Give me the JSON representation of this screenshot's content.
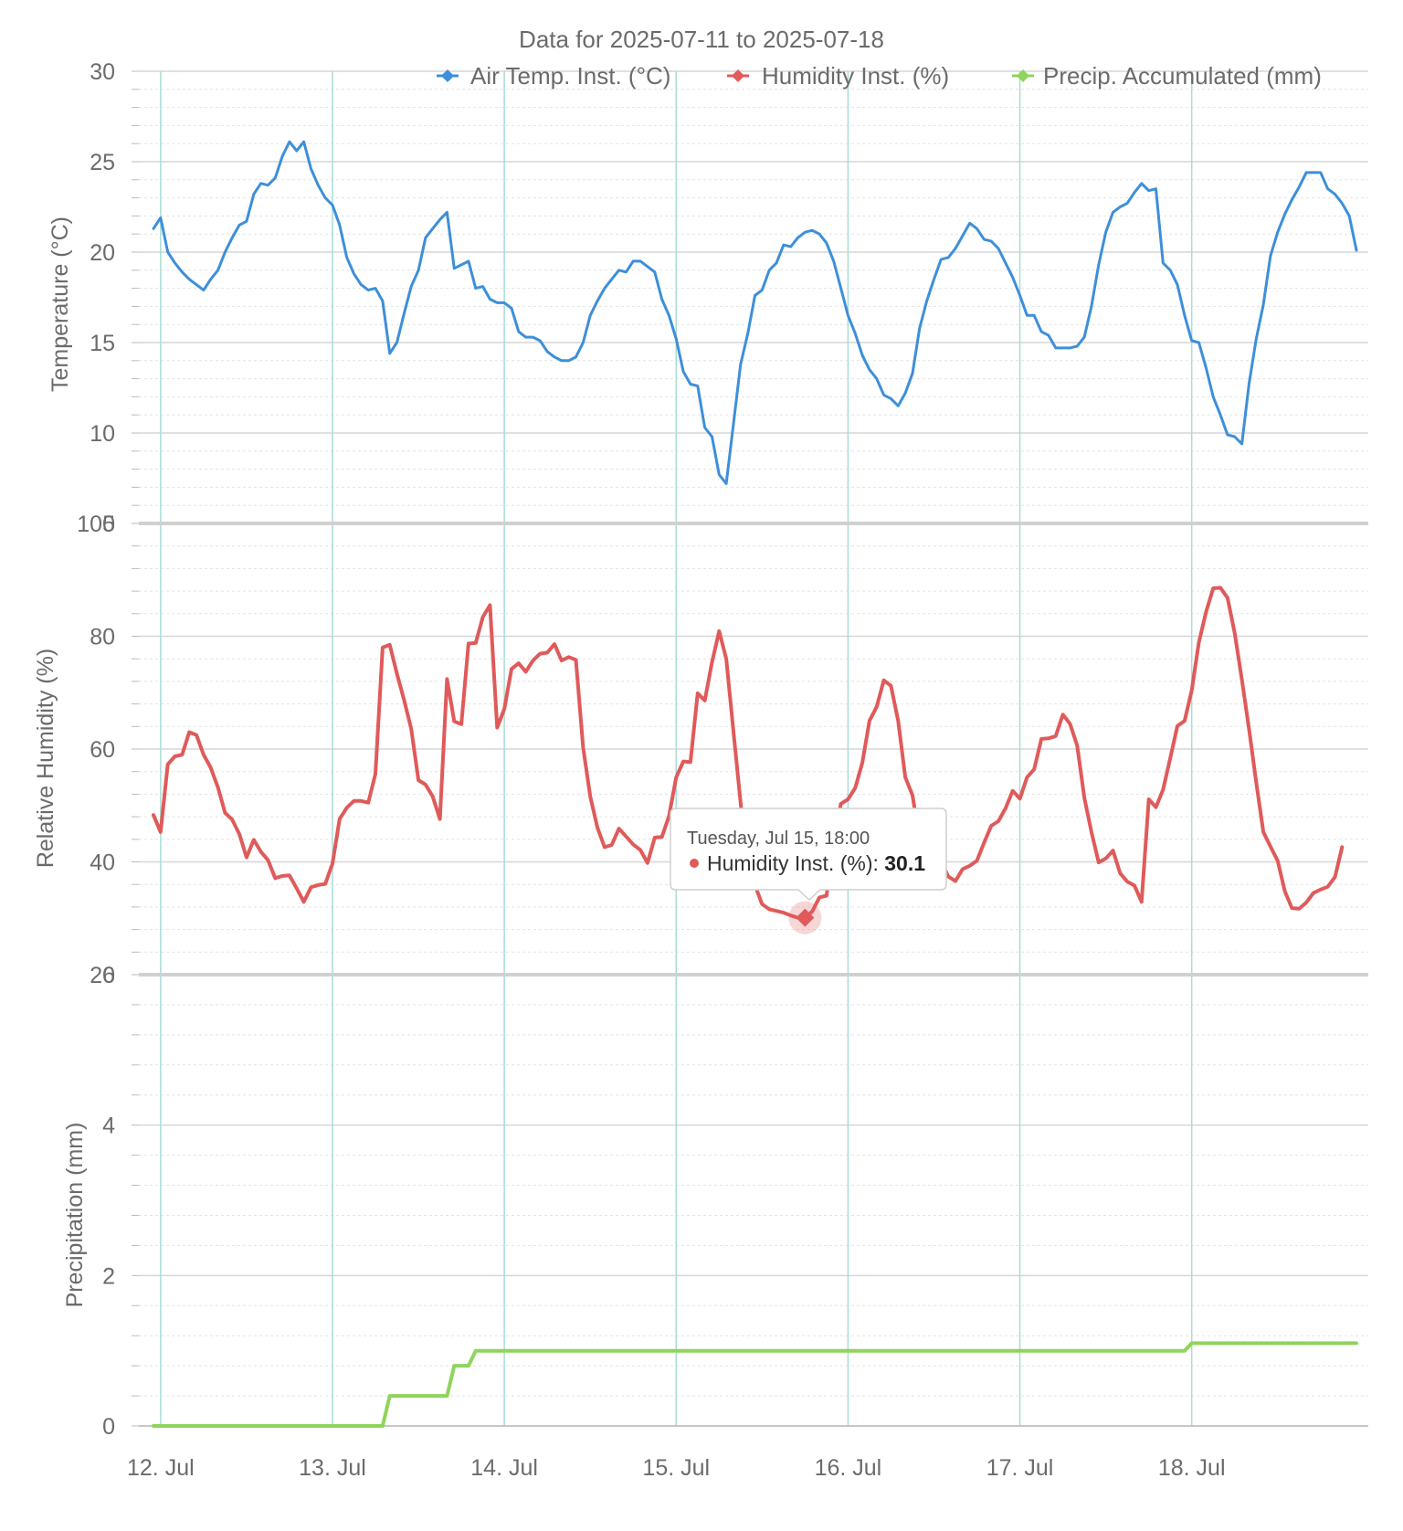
{
  "chart_data": {
    "type": "line",
    "title": "Data for 2025-07-11 to 2025-07-18",
    "x_start": "2025-07-11 23:00",
    "x_end": "2025-07-18 23:00",
    "x_step_hours": 1,
    "x_tick_labels": [
      "12. Jul",
      "13. Jul",
      "14. Jul",
      "15. Jul",
      "16. Jul",
      "17. Jul",
      "18. Jul"
    ],
    "panels": [
      {
        "ylabel": "Temperature (°C)",
        "ylim": [
          5,
          30
        ],
        "yticks": [
          5,
          10,
          15,
          20,
          25,
          30
        ],
        "series": "Air Temp. Inst. (°C)"
      },
      {
        "ylabel": "Relative Humidity (%)",
        "ylim": [
          20,
          100
        ],
        "yticks": [
          20,
          40,
          60,
          80,
          100
        ],
        "series": "Humidity Inst. (%)"
      },
      {
        "ylabel": "Precipitation (mm)",
        "ylim": [
          0,
          6
        ],
        "yticks": [
          0,
          2,
          4,
          6
        ],
        "series": "Precip. Accumulated (mm)"
      }
    ],
    "series": [
      {
        "name": "Air Temp. Inst. (°C)",
        "color": "#3d8fd9",
        "values": [
          21.3,
          21.9,
          20.0,
          19.4,
          18.9,
          18.5,
          18.2,
          17.9,
          18.5,
          19.0,
          20.0,
          20.8,
          21.5,
          21.7,
          23.2,
          23.8,
          23.7,
          24.1,
          25.3,
          26.1,
          25.6,
          26.1,
          24.6,
          23.7,
          23.0,
          22.6,
          21.5,
          19.7,
          18.8,
          18.2,
          17.9,
          18.0,
          17.3,
          14.4,
          15.0,
          16.6,
          18.1,
          19.0,
          20.8,
          21.3,
          21.8,
          22.2,
          19.1,
          19.3,
          19.5,
          18.0,
          18.1,
          17.4,
          17.2,
          17.2,
          16.9,
          15.6,
          15.3,
          15.3,
          15.1,
          14.5,
          14.2,
          14.0,
          14.0,
          14.2,
          15.0,
          16.5,
          17.3,
          18.0,
          18.5,
          19.0,
          18.9,
          19.5,
          19.5,
          19.2,
          18.9,
          17.4,
          16.5,
          15.2,
          13.4,
          12.7,
          12.6,
          10.3,
          9.8,
          7.7,
          7.2,
          10.5,
          13.8,
          15.5,
          17.6,
          17.9,
          19.0,
          19.4,
          20.4,
          20.3,
          20.8,
          21.1,
          21.2,
          21.0,
          20.5,
          19.5,
          18.0,
          16.5,
          15.5,
          14.3,
          13.5,
          13.0,
          12.1,
          11.9,
          11.5,
          12.2,
          13.3,
          15.8,
          17.3,
          18.5,
          19.6,
          19.7,
          20.2,
          20.9,
          21.6,
          21.3,
          20.7,
          20.6,
          20.2,
          19.4,
          18.6,
          17.6,
          16.5,
          16.5,
          15.6,
          15.4,
          14.7,
          14.7,
          14.7,
          14.8,
          15.3,
          17.0,
          19.3,
          21.1,
          22.2,
          22.5,
          22.7,
          23.3,
          23.8,
          23.4,
          23.5,
          19.4,
          19.0,
          18.2,
          16.5,
          15.1,
          15.0,
          13.6,
          12.0,
          11.0,
          9.9,
          9.8,
          9.4,
          12.7,
          15.2,
          17.1,
          19.8,
          21.1,
          22.1,
          22.9,
          23.6,
          24.4,
          24.4,
          24.4,
          23.5,
          23.2,
          22.7,
          22.0,
          20.1
        ]
      },
      {
        "name": "Humidity Inst. (%)",
        "color": "#e05a5a",
        "values": [
          48.3,
          45.3,
          57.3,
          58.7,
          59.0,
          63.0,
          62.5,
          59.0,
          56.7,
          53.2,
          48.7,
          47.5,
          44.9,
          40.8,
          43.9,
          41.8,
          40.3,
          37.1,
          37.5,
          37.6,
          35.3,
          32.9,
          35.5,
          35.9,
          36.1,
          39.7,
          47.6,
          49.6,
          50.8,
          50.8,
          50.5,
          55.6,
          78.0,
          78.5,
          73.4,
          68.7,
          63.6,
          54.5,
          53.7,
          51.6,
          47.6,
          72.4,
          64.9,
          64.4,
          78.7,
          78.8,
          83.4,
          85.5,
          63.8,
          67.1,
          74.2,
          75.2,
          73.7,
          75.7,
          76.9,
          77.1,
          78.6,
          75.7,
          76.3,
          75.8,
          60.3,
          51.6,
          46.1,
          42.6,
          43.0,
          45.9,
          44.5,
          43.1,
          42.1,
          39.8,
          44.3,
          44.4,
          48.1,
          55.0,
          57.8,
          57.7,
          69.9,
          68.6,
          75.4,
          80.9,
          76.0,
          63.1,
          50.5,
          39.4,
          35.9,
          32.5,
          31.6,
          31.3,
          31.0,
          30.5,
          30.1,
          30.1,
          31.2,
          33.7,
          34.0,
          43.8,
          50.3,
          51.1,
          53.1,
          57.6,
          65.0,
          67.5,
          72.2,
          71.2,
          65.0,
          55.0,
          51.8,
          43.9,
          40.8,
          40.8,
          40.1,
          37.4,
          36.6,
          38.7,
          39.3,
          40.2,
          43.4,
          46.4,
          47.2,
          49.5,
          52.6,
          51.2,
          55.0,
          56.4,
          61.8,
          61.9,
          62.3,
          66.1,
          64.5,
          60.6,
          51.4,
          45.3,
          39.9,
          40.6,
          42.0,
          38.0,
          36.5,
          35.8,
          32.9,
          51.1,
          49.7,
          52.8,
          58.4,
          64.1,
          65.0,
          70.4,
          78.9,
          84.3,
          88.5,
          88.6,
          86.8,
          80.6,
          72.3,
          63.6,
          54.1,
          45.3,
          42.7,
          40.2,
          34.8,
          31.8,
          31.7,
          32.8,
          34.5,
          35.1,
          35.6,
          37.3,
          42.6
        ]
      },
      {
        "name": "Precip. Accumulated (mm)",
        "color": "#8fd45c",
        "values": [
          0,
          0,
          0,
          0,
          0,
          0,
          0,
          0,
          0,
          0,
          0,
          0,
          0,
          0,
          0,
          0,
          0,
          0,
          0,
          0,
          0,
          0,
          0,
          0,
          0,
          0,
          0,
          0,
          0,
          0,
          0,
          0,
          0,
          0.4,
          0.4,
          0.4,
          0.4,
          0.4,
          0.4,
          0.4,
          0.4,
          0.4,
          0.8,
          0.8,
          0.8,
          1.0,
          1.0,
          1.0,
          1.0,
          1.0,
          1.0,
          1.0,
          1.0,
          1.0,
          1.0,
          1.0,
          1.0,
          1.0,
          1.0,
          1.0,
          1.0,
          1.0,
          1.0,
          1.0,
          1.0,
          1.0,
          1.0,
          1.0,
          1.0,
          1.0,
          1.0,
          1.0,
          1.0,
          1.0,
          1.0,
          1.0,
          1.0,
          1.0,
          1.0,
          1.0,
          1.0,
          1.0,
          1.0,
          1.0,
          1.0,
          1.0,
          1.0,
          1.0,
          1.0,
          1.0,
          1.0,
          1.0,
          1.0,
          1.0,
          1.0,
          1.0,
          1.0,
          1.0,
          1.0,
          1.0,
          1.0,
          1.0,
          1.0,
          1.0,
          1.0,
          1.0,
          1.0,
          1.0,
          1.0,
          1.0,
          1.0,
          1.0,
          1.0,
          1.0,
          1.0,
          1.0,
          1.0,
          1.0,
          1.0,
          1.0,
          1.0,
          1.0,
          1.0,
          1.0,
          1.0,
          1.0,
          1.0,
          1.0,
          1.0,
          1.0,
          1.0,
          1.0,
          1.0,
          1.0,
          1.0,
          1.0,
          1.0,
          1.0,
          1.0,
          1.0,
          1.0,
          1.0,
          1.0,
          1.0,
          1.0,
          1.1,
          1.1,
          1.1,
          1.1,
          1.1,
          1.1,
          1.1,
          1.1,
          1.1,
          1.1,
          1.1,
          1.1,
          1.1,
          1.1,
          1.1,
          1.1,
          1.1,
          1.1,
          1.1,
          1.1,
          1.1,
          1.1,
          1.1,
          1.1
        ]
      }
    ],
    "grid": true,
    "legend_position": "top-right",
    "tooltip": {
      "header": "Tuesday, Jul 15, 18:00",
      "series": "Humidity Inst. (%)",
      "value": "30.1",
      "x": "2025-07-15 18:00"
    }
  }
}
